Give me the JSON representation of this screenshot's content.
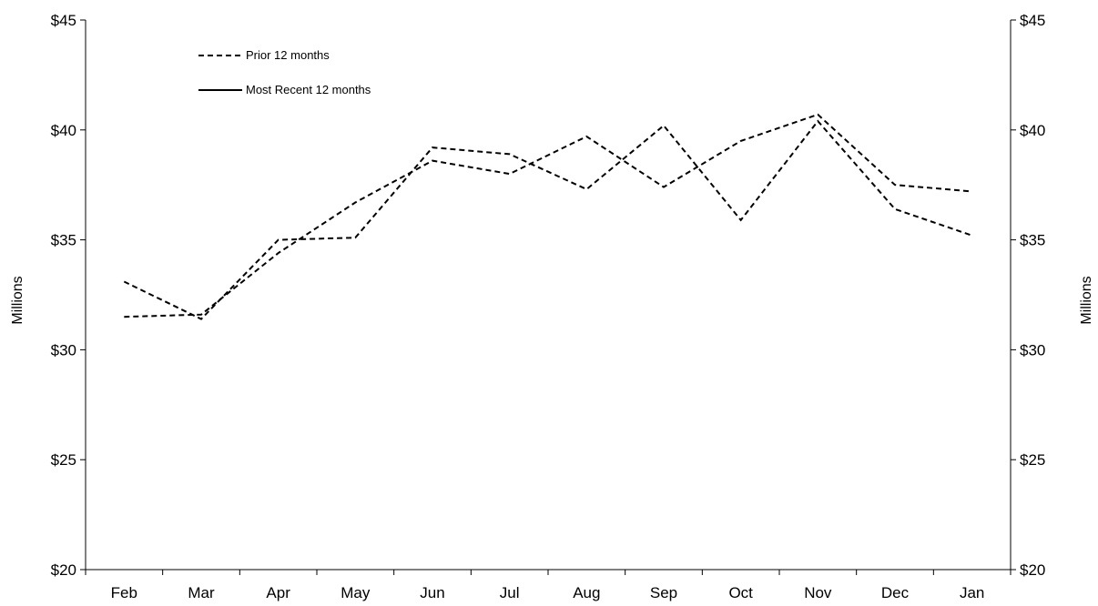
{
  "chart_data": {
    "type": "line",
    "categories": [
      "Feb",
      "Mar",
      "Apr",
      "May",
      "Jun",
      "Jul",
      "Aug",
      "Sep",
      "Oct",
      "Nov",
      "Dec",
      "Jan"
    ],
    "series": [
      {
        "name": "Prior 12 months",
        "style": "dashed",
        "color": "#000000",
        "values": [
          33.1,
          31.4,
          35.0,
          35.1,
          39.2,
          38.9,
          37.3,
          40.2,
          35.9,
          40.4,
          36.4,
          35.2
        ]
      },
      {
        "name": "Most Recent 12 months",
        "style": "dashed",
        "color": "#000000",
        "values": [
          31.5,
          31.6,
          34.4,
          36.7,
          38.6,
          38.0,
          39.7,
          37.4,
          39.5,
          40.7,
          37.5,
          37.2
        ]
      }
    ],
    "y_ticks": [
      "$20",
      "$25",
      "$30",
      "$35",
      "$40",
      "$45"
    ],
    "ylim": [
      20,
      45
    ],
    "ylabel_left": "Millions",
    "ylabel_right": "Millions",
    "legend_position": "top-left",
    "grid": false
  }
}
